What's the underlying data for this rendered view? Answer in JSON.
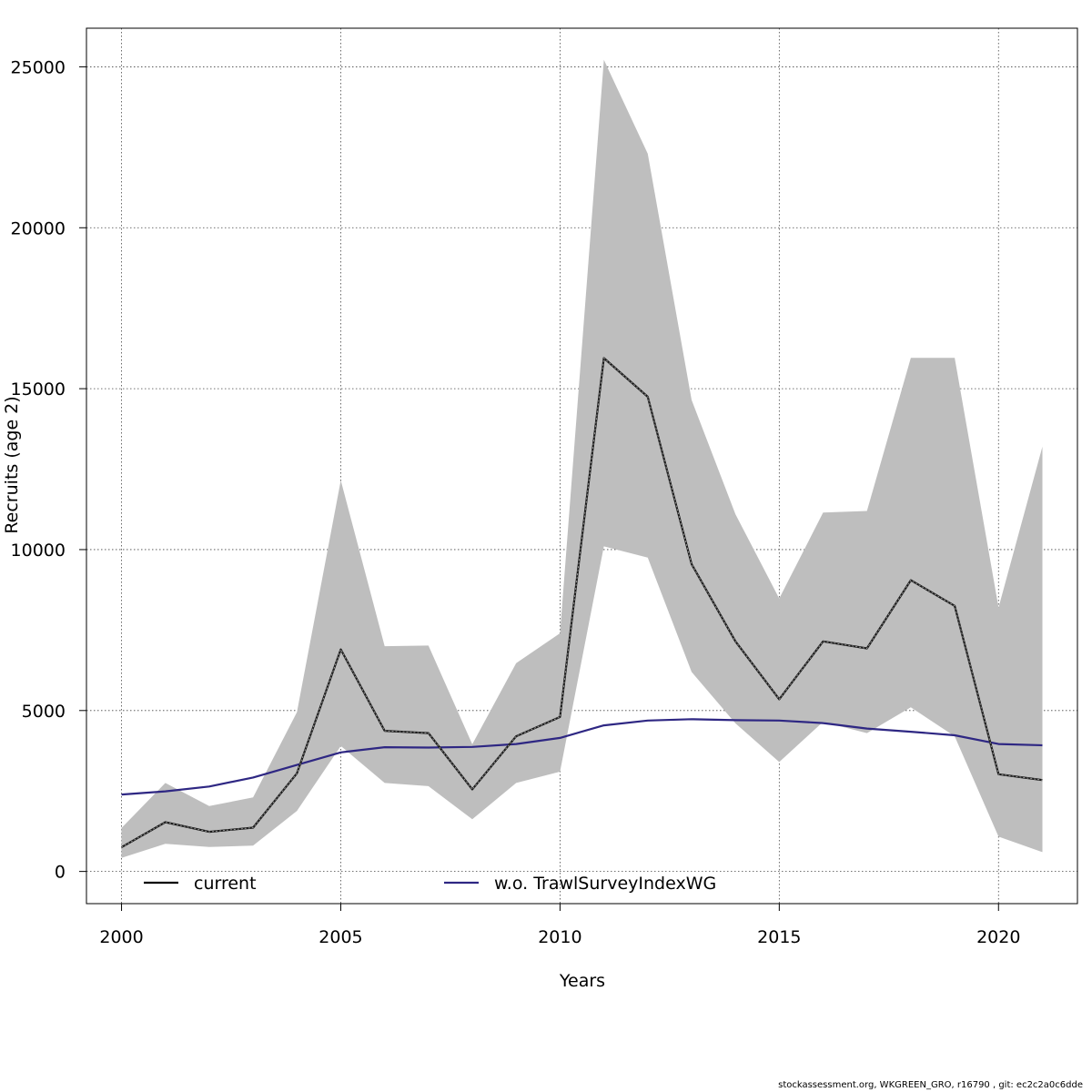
{
  "chart_data": {
    "type": "line",
    "xlabel": "Years",
    "ylabel": "Recruits (age 2)",
    "xlim": [
      1999.2,
      2021.8
    ],
    "ylim": [
      -1000,
      26200
    ],
    "x_ticks": [
      2000,
      2005,
      2010,
      2015,
      2020
    ],
    "y_ticks": [
      0,
      5000,
      10000,
      15000,
      20000,
      25000
    ],
    "grid": true,
    "x": [
      2000,
      2001,
      2002,
      2003,
      2004,
      2005,
      2006,
      2007,
      2008,
      2009,
      2010,
      2011,
      2012,
      2013,
      2014,
      2015,
      2016,
      2017,
      2018,
      2019,
      2020,
      2021
    ],
    "band": {
      "lower": [
        420,
        860,
        760,
        800,
        1880,
        3900,
        2750,
        2650,
        1620,
        2750,
        3100,
        10100,
        9750,
        6200,
        4600,
        3400,
        4650,
        4300,
        5100,
        4200,
        1080,
        600
      ],
      "upper": [
        1350,
        2750,
        2030,
        2300,
        4950,
        12150,
        7000,
        7020,
        3950,
        6470,
        7400,
        25220,
        22300,
        14650,
        11100,
        8480,
        11150,
        11200,
        15960,
        15960,
        8200,
        13200
      ],
      "color": "#bebebe"
    },
    "series": [
      {
        "name": "current",
        "color": "#1a1a1a",
        "dashed": true,
        "values": [
          750,
          1530,
          1230,
          1360,
          3050,
          6900,
          4370,
          4300,
          2550,
          4200,
          4800,
          15950,
          14750,
          9550,
          7150,
          5350,
          7150,
          6930,
          9050,
          8250,
          3020,
          2840
        ]
      },
      {
        "name": "w.o. TrawlSurveyIndexWG",
        "color": "#2e2783",
        "dashed": false,
        "values": [
          2390,
          2490,
          2640,
          2920,
          3310,
          3700,
          3860,
          3850,
          3870,
          3960,
          4150,
          4540,
          4690,
          4730,
          4700,
          4690,
          4610,
          4440,
          4340,
          4230,
          3960,
          3920
        ]
      }
    ],
    "legend": {
      "placement": "bottom",
      "entries": [
        {
          "label": "current",
          "color": "#000000"
        },
        {
          "label": "w.o. TrawlSurveyIndexWG",
          "color": "#2e2783"
        }
      ]
    }
  },
  "footer": "stockassessment.org, WKGREEN_GRO, r16790 , git: ec2c2a0c6dde"
}
